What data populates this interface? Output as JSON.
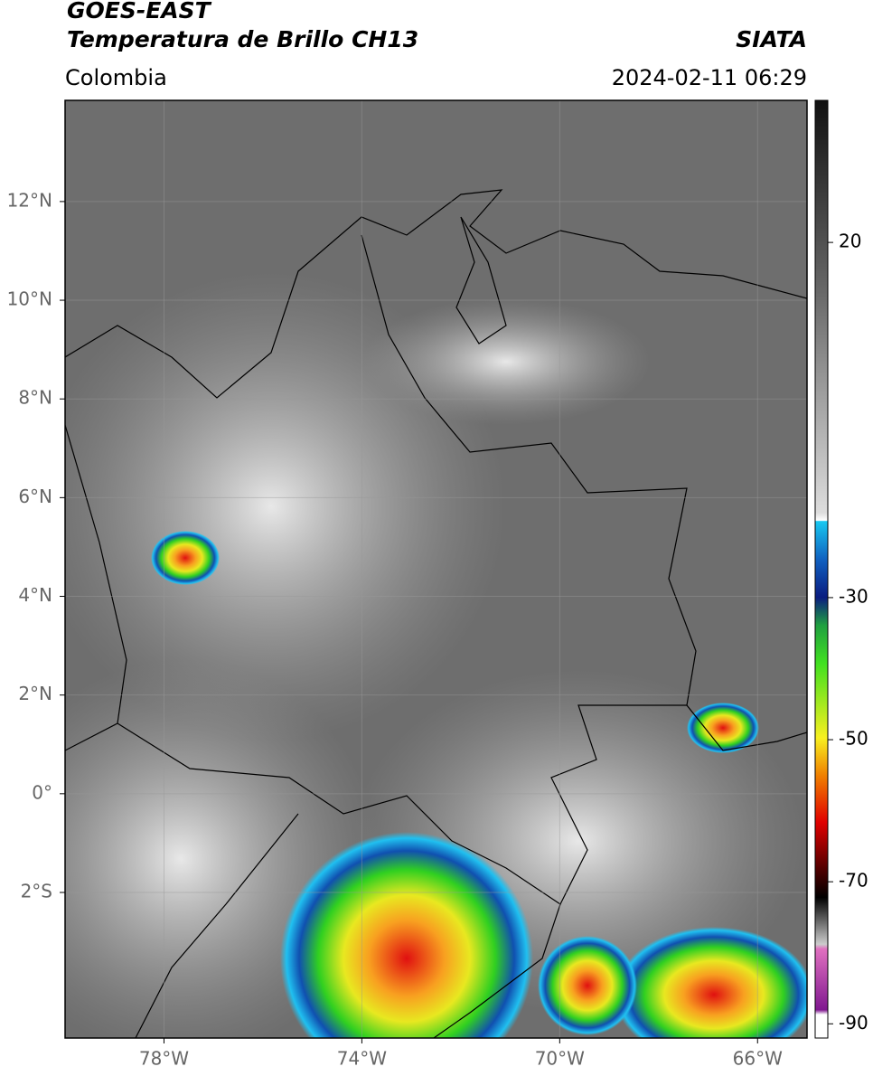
{
  "header": {
    "satellite": "GOES-EAST",
    "product": "Temperatura de Brillo CH13",
    "source": "SIATA",
    "region": "Colombia",
    "timestamp": "2024-02-11 06:29"
  },
  "map": {
    "xlim": [
      -80,
      -65
    ],
    "ylim": [
      -4.95,
      14.05
    ],
    "xticks": [
      {
        "value": -78,
        "label": "78°W"
      },
      {
        "value": -74,
        "label": "74°W"
      },
      {
        "value": -70,
        "label": "70°W"
      },
      {
        "value": -66,
        "label": "66°W"
      }
    ],
    "yticks": [
      {
        "value": 12,
        "label": "12°N"
      },
      {
        "value": 10,
        "label": "10°N"
      },
      {
        "value": 8,
        "label": "8°N"
      },
      {
        "value": 6,
        "label": "6°N"
      },
      {
        "value": 4,
        "label": "4°N"
      },
      {
        "value": 2,
        "label": "2°N"
      },
      {
        "value": 0,
        "label": "0°"
      },
      {
        "value": -2,
        "label": "2°S"
      }
    ],
    "grid": true
  },
  "colorbar": {
    "lim": [
      -92,
      40
    ],
    "ticks": [
      20,
      -30,
      -50,
      -70,
      -90
    ]
  }
}
